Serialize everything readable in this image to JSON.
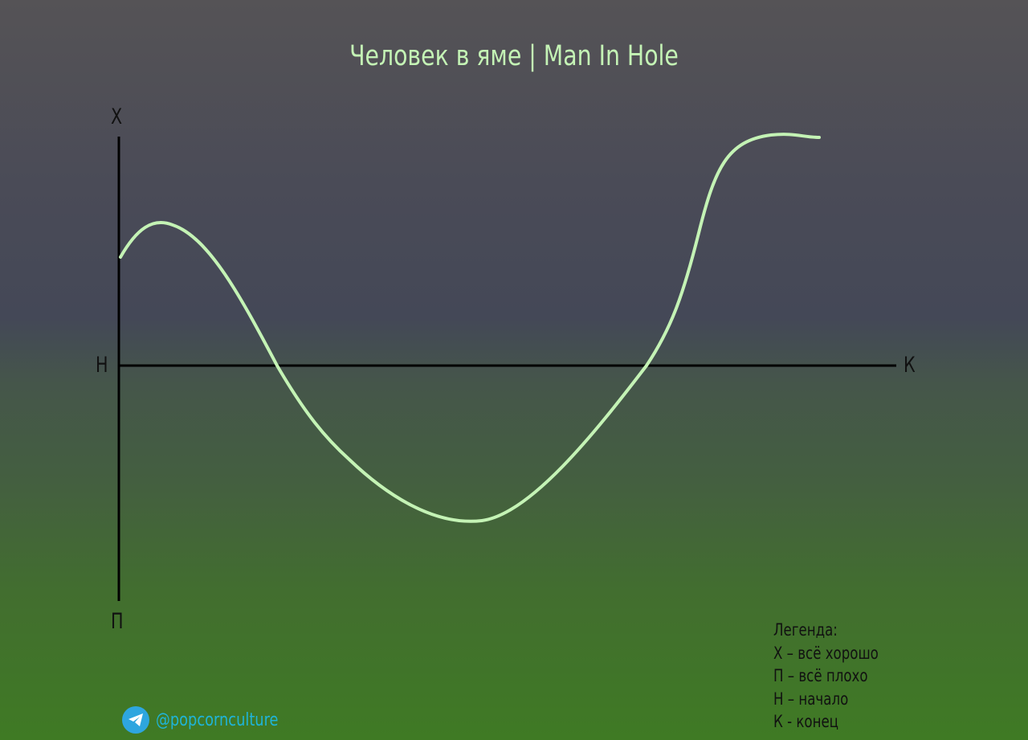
{
  "title": "Человек в яме | Man In Hole",
  "axes": {
    "top": "Х",
    "bottom": "П",
    "left": "Н",
    "right": "К"
  },
  "legend": {
    "heading": "Легенда:",
    "items": [
      "Х – всё хорошо",
      "П – всё плохо",
      "Н – начало",
      "К - конец"
    ]
  },
  "footer": {
    "icon": "telegram-icon",
    "handle": "@popcornculture"
  },
  "colors": {
    "curve": "#c4f3b5",
    "axes": "#000000",
    "handle": "#1fb4d8"
  }
}
